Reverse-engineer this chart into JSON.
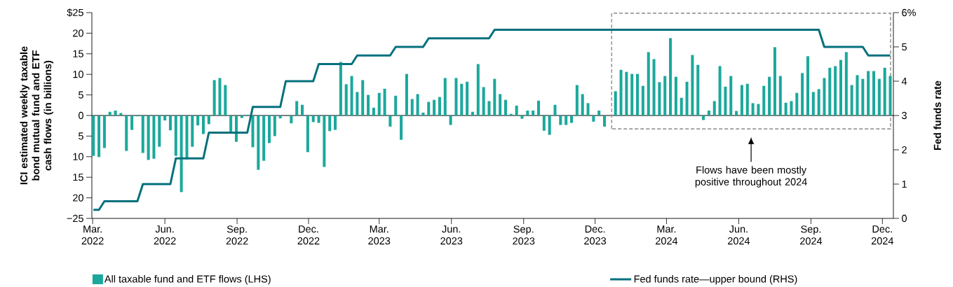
{
  "chart_data": {
    "type": "bar",
    "ylabel": "ICI estimated weekly taxable bond mutual fund and ETF cash flows (in billions)",
    "y2label": "Fed funds rate",
    "annotations": [
      "Flows have been mostly positive throughout 2024"
    ],
    "x": [
      "2022-03-02",
      "2022-03-09",
      "2022-03-16",
      "2022-03-23",
      "2022-03-30",
      "2022-04-06",
      "2022-04-13",
      "2022-04-20",
      "2022-04-27",
      "2022-05-04",
      "2022-05-11",
      "2022-05-18",
      "2022-05-25",
      "2022-06-01",
      "2022-06-08",
      "2022-06-15",
      "2022-06-22",
      "2022-06-29",
      "2022-07-06",
      "2022-07-13",
      "2022-07-20",
      "2022-07-27",
      "2022-08-03",
      "2022-08-10",
      "2022-08-17",
      "2022-08-24",
      "2022-08-31",
      "2022-09-07",
      "2022-09-14",
      "2022-09-21",
      "2022-09-28",
      "2022-10-05",
      "2022-10-12",
      "2022-10-19",
      "2022-10-26",
      "2022-11-02",
      "2022-11-09",
      "2022-11-16",
      "2022-11-23",
      "2022-11-30",
      "2022-12-07",
      "2022-12-14",
      "2022-12-21",
      "2022-12-28",
      "2023-01-04",
      "2023-01-11",
      "2023-01-18",
      "2023-01-25",
      "2023-02-01",
      "2023-02-08",
      "2023-02-15",
      "2023-02-22",
      "2023-03-01",
      "2023-03-08",
      "2023-03-15",
      "2023-03-22",
      "2023-03-29",
      "2023-04-05",
      "2023-04-12",
      "2023-04-19",
      "2023-04-26",
      "2023-05-03",
      "2023-05-10",
      "2023-05-17",
      "2023-05-24",
      "2023-05-31",
      "2023-06-07",
      "2023-06-14",
      "2023-06-21",
      "2023-06-28",
      "2023-07-05",
      "2023-07-12",
      "2023-07-19",
      "2023-07-26",
      "2023-08-02",
      "2023-08-09",
      "2023-08-16",
      "2023-08-23",
      "2023-08-30",
      "2023-09-06",
      "2023-09-13",
      "2023-09-20",
      "2023-09-27",
      "2023-10-04",
      "2023-10-11",
      "2023-10-18",
      "2023-10-25",
      "2023-11-01",
      "2023-11-08",
      "2023-11-15",
      "2023-11-22",
      "2023-11-29",
      "2023-12-06",
      "2023-12-13",
      "2023-12-20",
      "2023-12-27",
      "2024-01-03",
      "2024-01-10",
      "2024-01-17",
      "2024-01-24",
      "2024-01-31",
      "2024-02-07",
      "2024-02-14",
      "2024-02-21",
      "2024-02-28",
      "2024-03-06",
      "2024-03-13",
      "2024-03-20",
      "2024-03-27",
      "2024-04-03",
      "2024-04-10",
      "2024-04-17",
      "2024-04-24",
      "2024-05-01",
      "2024-05-08",
      "2024-05-15",
      "2024-05-22",
      "2024-05-29",
      "2024-06-05",
      "2024-06-12",
      "2024-06-19",
      "2024-06-26",
      "2024-07-03",
      "2024-07-10",
      "2024-07-17",
      "2024-07-24",
      "2024-07-31",
      "2024-08-07",
      "2024-08-14",
      "2024-08-21",
      "2024-08-28",
      "2024-09-04",
      "2024-09-11",
      "2024-09-18",
      "2024-09-25",
      "2024-10-02",
      "2024-10-09",
      "2024-10-16",
      "2024-10-23",
      "2024-10-30",
      "2024-11-06",
      "2024-11-13",
      "2024-11-20",
      "2024-11-27",
      "2024-12-04",
      "2024-12-11"
    ],
    "series": [
      {
        "name": "All taxable fund and ETF flows (LHS)",
        "color": "#1ba89c",
        "values": [
          -9.8,
          -10.1,
          -7.9,
          0.9,
          1.2,
          0.6,
          -8.6,
          -3.5,
          -0.2,
          -9.1,
          -10.8,
          -10.5,
          -7.6,
          -1.2,
          -3.6,
          -9.8,
          -18.6,
          -10.7,
          -7.6,
          -2.4,
          -4.5,
          -2.1,
          8.6,
          9.1,
          7.4,
          -3.9,
          -6.4,
          -0.6,
          0.2,
          -7.7,
          -13.2,
          -11.0,
          -6.7,
          -5.0,
          -0.7,
          0,
          -1.9,
          3.5,
          2.6,
          -8.9,
          -1.6,
          -1.8,
          -12.5,
          -3.8,
          -3.5,
          13.0,
          7.6,
          9.6,
          5.7,
          8.6,
          5.0,
          1.9,
          5.5,
          6.5,
          -2.7,
          4.8,
          -5.9,
          10.1,
          4.0,
          5.2,
          0.7,
          3.3,
          3.8,
          4.5,
          9.1,
          -2.3,
          9.1,
          7.7,
          8.2,
          0.9,
          12.5,
          6.9,
          3.5,
          8.9,
          5.2,
          3.8,
          0.4,
          2.4,
          -0.8,
          1.2,
          1.2,
          3.6,
          -3.7,
          -4.7,
          2.6,
          -2.3,
          -2.3,
          -1.8,
          7.4,
          5.2,
          3.0,
          -1.5,
          1.2,
          -2.7,
          0,
          5.9,
          11.1,
          10.6,
          10.1,
          10.1,
          7.2,
          15.4,
          13.7,
          8.1,
          9.6,
          18.8,
          9.4,
          4.3,
          8.2,
          14.7,
          12.3,
          -1.1,
          1.2,
          3.5,
          12.0,
          7.0,
          9.6,
          1.1,
          7.4,
          7.7,
          3.0,
          2.8,
          7.2,
          9.4,
          16.6,
          9.6,
          3.1,
          3.5,
          5.5,
          10.3,
          14.4,
          5.7,
          6.4,
          9.1,
          11.6,
          12.0,
          13.5,
          15.4,
          7.4,
          9.8,
          8.9,
          10.8,
          10.8,
          8.9,
          11.6,
          9.6
        ]
      },
      {
        "name": "Fed funds rate—upper bound (RHS)",
        "type": "line",
        "axis": "y2",
        "color": "#04707d",
        "x": [
          "2022-03-02",
          "2022-03-09",
          "2022-03-16",
          "2022-04-27",
          "2022-05-04",
          "2022-06-08",
          "2022-06-15",
          "2022-07-20",
          "2022-07-27",
          "2022-09-14",
          "2022-09-21",
          "2022-10-26",
          "2022-11-02",
          "2022-12-07",
          "2022-12-14",
          "2023-01-25",
          "2023-02-01",
          "2023-03-15",
          "2023-03-22",
          "2023-04-26",
          "2023-05-03",
          "2023-07-19",
          "2023-07-26",
          "2024-09-11",
          "2024-09-18",
          "2024-11-06",
          "2024-11-13",
          "2024-12-11"
        ],
        "values": [
          0.25,
          0.25,
          0.5,
          0.5,
          1.0,
          1.0,
          1.75,
          1.75,
          2.5,
          2.5,
          3.25,
          3.25,
          4.0,
          4.0,
          4.5,
          4.5,
          4.75,
          4.75,
          5.0,
          5.0,
          5.25,
          5.25,
          5.5,
          5.5,
          5.0,
          5.0,
          4.75,
          4.75
        ]
      }
    ],
    "xlim": [
      "2022-02-28",
      "2024-12-15"
    ],
    "xticks": [
      {
        "value": "2022-03-01",
        "label": "Mar. 2022"
      },
      {
        "value": "2022-06-01",
        "label": "Jun. 2022"
      },
      {
        "value": "2022-09-01",
        "label": "Sep. 2022"
      },
      {
        "value": "2022-12-01",
        "label": "Dec. 2022"
      },
      {
        "value": "2023-03-01",
        "label": "Mar. 2023"
      },
      {
        "value": "2023-06-01",
        "label": "Jun. 2023"
      },
      {
        "value": "2023-09-01",
        "label": "Sep. 2023"
      },
      {
        "value": "2023-12-01",
        "label": "Dec. 2023"
      },
      {
        "value": "2024-03-01",
        "label": "Mar. 2024"
      },
      {
        "value": "2024-06-01",
        "label": "Jun. 2024"
      },
      {
        "value": "2024-09-01",
        "label": "Sep. 2024"
      },
      {
        "value": "2024-12-01",
        "label": "Dec. 2024"
      }
    ],
    "ylim": [
      -25,
      25
    ],
    "yticks": [
      {
        "value": -25,
        "label": "−25"
      },
      {
        "value": -20,
        "label": "20"
      },
      {
        "value": -15,
        "label": "15"
      },
      {
        "value": -10,
        "label": "10"
      },
      {
        "value": -5,
        "label": "5"
      },
      0,
      5,
      10,
      15,
      20,
      {
        "value": 25,
        "label": "$25"
      }
    ],
    "y2lim": [
      0,
      6
    ],
    "y2ticks": [
      0,
      1,
      2,
      3,
      4,
      5,
      {
        "value": 6,
        "label": "6%"
      }
    ],
    "legend": "bottom"
  }
}
